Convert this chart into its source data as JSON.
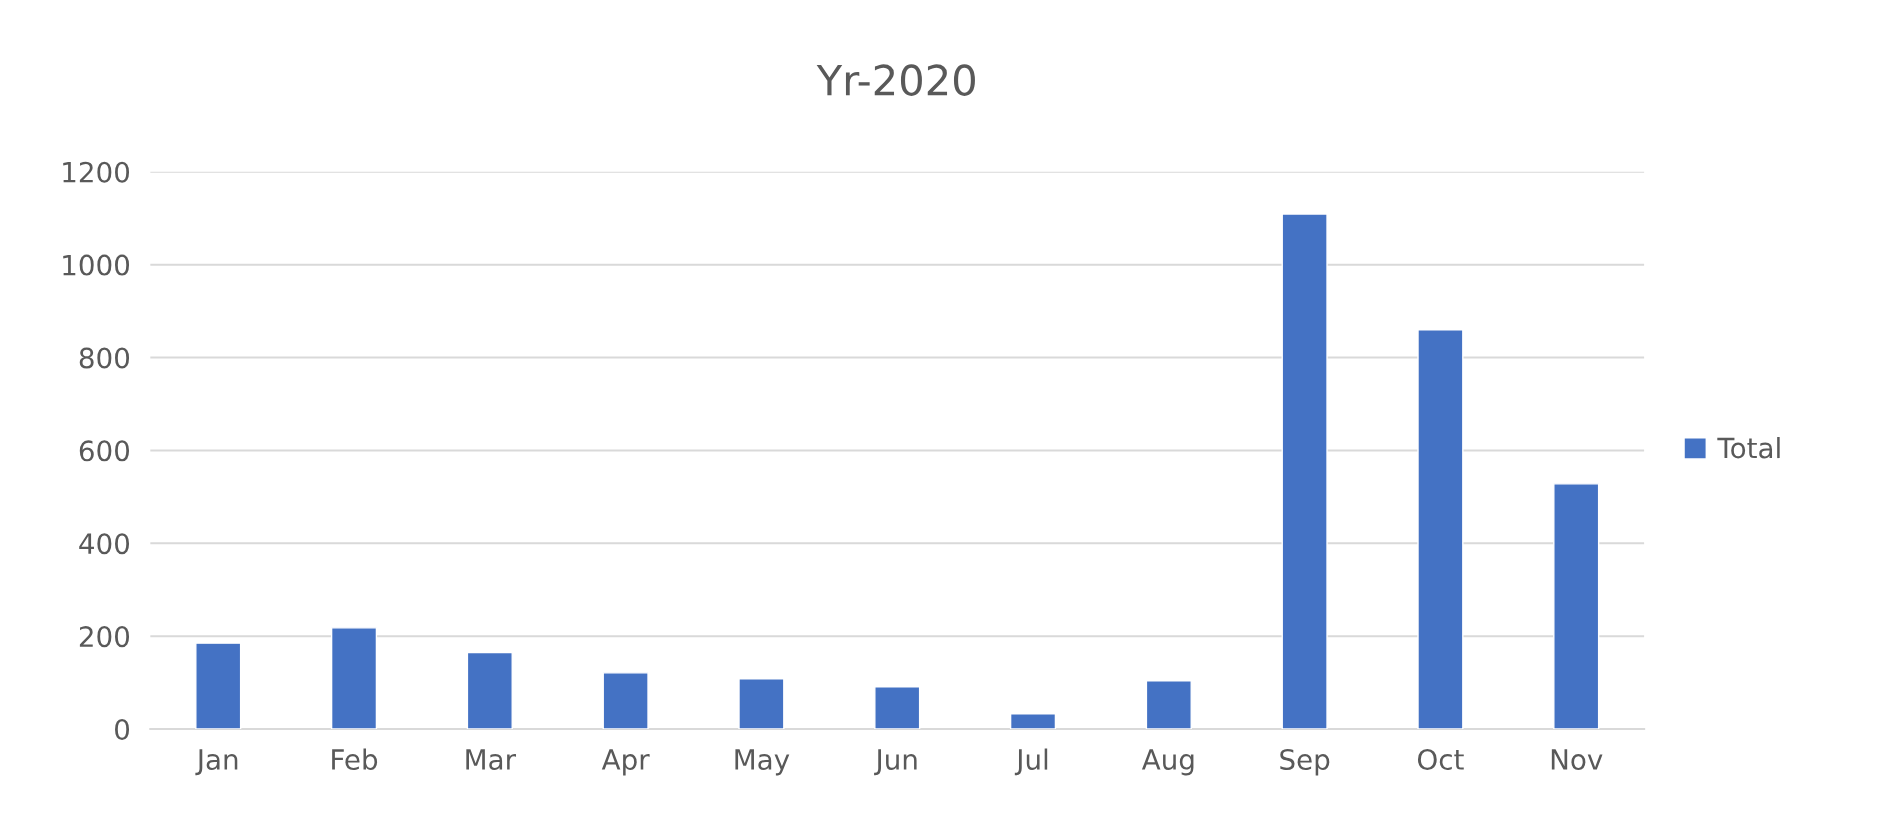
{
  "chart_data": {
    "type": "bar",
    "title": "Yr-2020",
    "categories": [
      "Jan",
      "Feb",
      "Mar",
      "Apr",
      "May",
      "Jun",
      "Jul",
      "Aug",
      "Sep",
      "Oct",
      "Nov"
    ],
    "series": [
      {
        "name": "Total",
        "color": "#4472c4",
        "values": [
          185,
          218,
          165,
          121,
          108,
          91,
          33,
          104,
          1109,
          860,
          528
        ]
      }
    ],
    "ylim": [
      0,
      1200
    ],
    "yticks": [
      0,
      200,
      400,
      600,
      800,
      1000,
      1200
    ],
    "grid": "y",
    "legend": "right"
  }
}
